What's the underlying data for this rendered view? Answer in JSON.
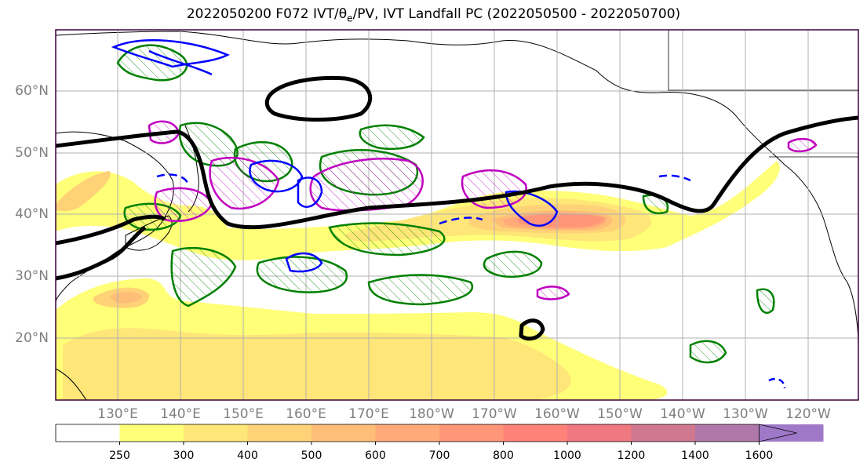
{
  "title": {
    "prefix": "2022050200 F072 IVT/",
    "theta_symbol": "θ",
    "theta_sub": "e",
    "suffix": "/PV, IVT Landfall PC (2022050500 - 2022050700)"
  },
  "map": {
    "projection": "PlateCarree",
    "lon_range": [
      120,
      248
    ],
    "lat_range": [
      10,
      70
    ],
    "lat_labels": [
      "20°N",
      "30°N",
      "40°N",
      "50°N",
      "60°N"
    ],
    "lon_labels": [
      "130°E",
      "140°E",
      "150°E",
      "160°E",
      "170°E",
      "180°W",
      "170°W",
      "160°W",
      "150°W",
      "140°W",
      "130°W",
      "120°W"
    ],
    "gridlines": true,
    "colors": {
      "geopotential_contour": "#000000",
      "thetae_contour": "#008000",
      "pv_solid": "#0000ff",
      "pv_dashed": "#0000ff",
      "ivt_pc_contour": "#c000c0",
      "coastline": "#000000",
      "gridline": "#b0b0b0",
      "frame": "#3a003a"
    }
  },
  "colorbar": {
    "levels": [
      "250",
      "300",
      "400",
      "500",
      "600",
      "700",
      "800",
      "1000",
      "1200",
      "1400",
      "1600"
    ],
    "colors": [
      "#ffffff",
      "#ffff78",
      "#ffe678",
      "#ffd278",
      "#ffbe78",
      "#ffaa78",
      "#ff9678",
      "#ff8278",
      "#f07880",
      "#d07890",
      "#b078a8",
      "#a078c8"
    ],
    "extend": "max"
  }
}
